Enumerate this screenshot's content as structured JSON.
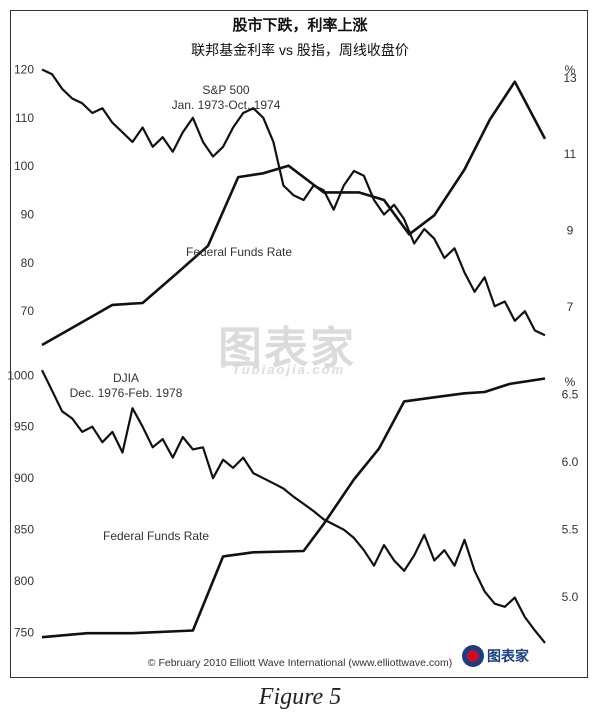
{
  "title": "股市下跌，利率上涨",
  "subtitle": "联邦基金利率 vs 股指，周线收盘价",
  "copyright": "© February 2010 Elliott Wave International (www.elliottwave.com)",
  "figure_caption": "Figure 5",
  "watermark": {
    "main": "图表家",
    "sub": "Tubiaojia.com"
  },
  "logo": {
    "text": "图表家"
  },
  "chart_data": [
    {
      "type": "line",
      "series_label_lines": [
        "S&P 500",
        "Jan. 1973-Oct. 1974"
      ],
      "rate_label": "Federal Funds Rate",
      "left_axis": {
        "ticks": [
          70,
          80,
          90,
          100,
          110,
          120
        ],
        "range": [
          63,
          123
        ]
      },
      "right_axis": {
        "unit": "%",
        "ticks": [
          7,
          9,
          11,
          13
        ],
        "range": [
          6.0,
          13.6
        ]
      },
      "series": [
        {
          "name": "S&P 500",
          "axis": "left",
          "x": [
            0,
            0.02,
            0.04,
            0.06,
            0.08,
            0.1,
            0.12,
            0.14,
            0.16,
            0.18,
            0.2,
            0.22,
            0.24,
            0.26,
            0.28,
            0.3,
            0.32,
            0.34,
            0.36,
            0.38,
            0.4,
            0.42,
            0.44,
            0.46,
            0.48,
            0.5,
            0.52,
            0.54,
            0.56,
            0.58,
            0.6,
            0.62,
            0.64,
            0.66,
            0.68,
            0.7,
            0.72,
            0.74,
            0.76,
            0.78,
            0.8,
            0.82,
            0.84,
            0.86,
            0.88,
            0.9,
            0.92,
            0.94,
            0.96,
            0.98,
            1.0
          ],
          "values": [
            120,
            119,
            116,
            114,
            113,
            111,
            112,
            109,
            107,
            105,
            108,
            104,
            106,
            103,
            107,
            110,
            105,
            102,
            104,
            108,
            111,
            112,
            110,
            105,
            96,
            94,
            93,
            96,
            95,
            91,
            96,
            99,
            98,
            93,
            90,
            92,
            89,
            84,
            87,
            85,
            81,
            83,
            78,
            74,
            77,
            71,
            72,
            68,
            70,
            66,
            65
          ]
        },
        {
          "name": "Federal Funds Rate",
          "axis": "right",
          "x": [
            0,
            0.08,
            0.14,
            0.2,
            0.27,
            0.33,
            0.39,
            0.44,
            0.49,
            0.56,
            0.63,
            0.68,
            0.73,
            0.78,
            0.84,
            0.89,
            0.94,
            1.0
          ],
          "values": [
            6.0,
            6.6,
            7.05,
            7.1,
            7.9,
            8.6,
            10.4,
            10.5,
            10.7,
            10.0,
            10.0,
            9.8,
            8.9,
            9.4,
            10.6,
            11.9,
            12.9,
            11.4
          ]
        }
      ]
    },
    {
      "type": "line",
      "series_label_lines": [
        "DJIA",
        "Dec. 1976-Feb. 1978"
      ],
      "rate_label": "Federal Funds Rate",
      "left_axis": {
        "ticks": [
          750,
          800,
          850,
          900,
          950,
          1000
        ],
        "range": [
          735,
          1010
        ]
      },
      "right_axis": {
        "unit": "%",
        "ticks": [
          5.0,
          5.5,
          6.0,
          6.5
        ],
        "range": [
          4.62,
          6.72
        ]
      },
      "series": [
        {
          "name": "DJIA",
          "axis": "left",
          "x": [
            0,
            0.02,
            0.04,
            0.06,
            0.08,
            0.1,
            0.12,
            0.14,
            0.16,
            0.18,
            0.2,
            0.22,
            0.24,
            0.26,
            0.28,
            0.3,
            0.32,
            0.34,
            0.36,
            0.38,
            0.4,
            0.42,
            0.44,
            0.46,
            0.48,
            0.5,
            0.52,
            0.54,
            0.56,
            0.58,
            0.6,
            0.62,
            0.64,
            0.66,
            0.68,
            0.7,
            0.72,
            0.74,
            0.76,
            0.78,
            0.8,
            0.82,
            0.84,
            0.86,
            0.88,
            0.9,
            0.92,
            0.94,
            0.96,
            0.98,
            1.0
          ],
          "values": [
            1005,
            985,
            965,
            958,
            945,
            950,
            935,
            945,
            925,
            968,
            950,
            930,
            938,
            920,
            940,
            928,
            930,
            900,
            918,
            910,
            920,
            905,
            900,
            895,
            890,
            882,
            875,
            868,
            860,
            855,
            850,
            842,
            830,
            815,
            835,
            820,
            810,
            825,
            845,
            820,
            830,
            815,
            840,
            810,
            790,
            778,
            775,
            784,
            765,
            752,
            740
          ]
        },
        {
          "name": "Federal Funds Rate",
          "axis": "right",
          "x": [
            0,
            0.09,
            0.18,
            0.3,
            0.36,
            0.42,
            0.52,
            0.56,
            0.62,
            0.67,
            0.72,
            0.78,
            0.84,
            0.88,
            0.93,
            1.0
          ],
          "values": [
            4.7,
            4.73,
            4.73,
            4.75,
            5.3,
            5.33,
            5.34,
            5.54,
            5.87,
            6.1,
            6.45,
            6.48,
            6.51,
            6.52,
            6.58,
            6.62
          ]
        }
      ]
    }
  ]
}
